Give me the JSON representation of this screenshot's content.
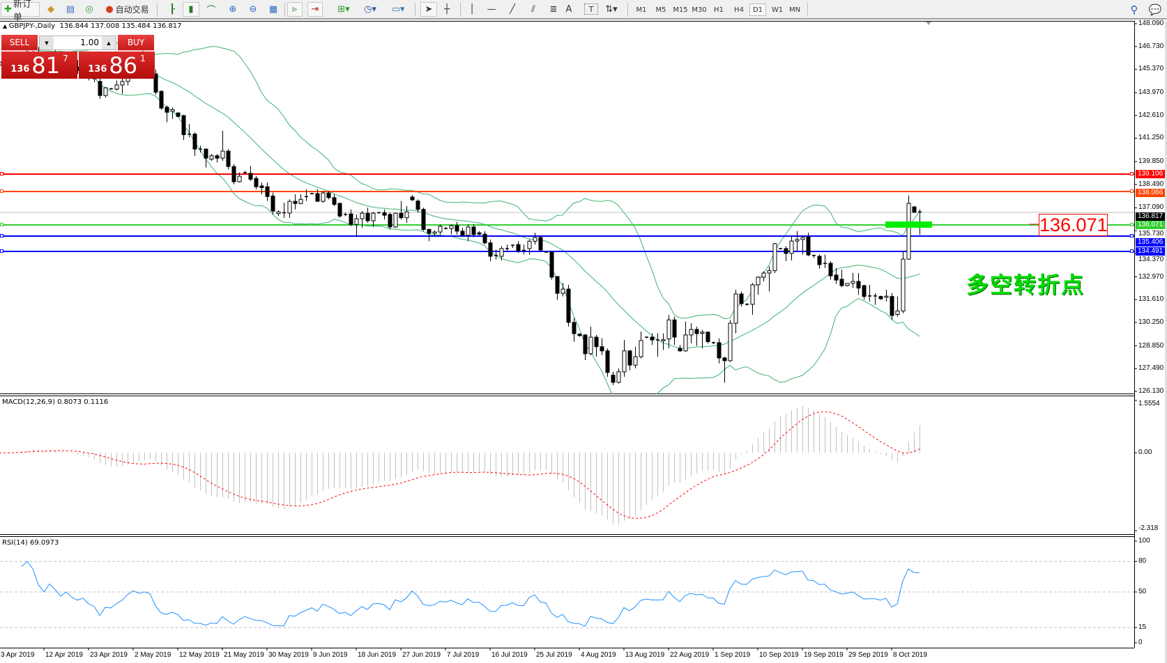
{
  "toolbar": {
    "new_order_label": "新订单",
    "auto_trading_label": "自动交易",
    "timeframes": [
      "M1",
      "M5",
      "M15",
      "M30",
      "H1",
      "H4",
      "D1",
      "W1",
      "MN"
    ],
    "active_timeframe": "D1",
    "drawing_tools": {
      "text_tool": "A",
      "label_tool": "T"
    }
  },
  "chart": {
    "symbol_period": "GBPJPY-,Daily",
    "ohlc": "136.844 137.008 135.484 136.817",
    "macd_label": "MACD(12,26,9) 0.8073 0.1116",
    "rsi_label": "RSI(14) 69.0973"
  },
  "trade_panel": {
    "sell_label": "SELL",
    "buy_label": "BUY",
    "lot": "1.00",
    "sell_price": {
      "prefix": "136",
      "main": "81",
      "sup": "7"
    },
    "buy_price": {
      "prefix": "136",
      "main": "86",
      "sup": "1"
    }
  },
  "annotation": {
    "price_box": "136.071",
    "text": "多空转折点"
  },
  "chart_data": {
    "type": "candlestick",
    "symbol": "GBPJPY-",
    "timeframe": "Daily",
    "ylim": [
      126.13,
      148.09
    ],
    "price_ticks": [
      "148.090",
      "146.730",
      "145.370",
      "143.970",
      "142.610",
      "141.250",
      "139.850",
      "138.490",
      "137.090",
      "135.730",
      "134.370",
      "132.970",
      "131.610",
      "130.250",
      "128.850",
      "127.490",
      "126.130"
    ],
    "date_ticks": [
      "3 Apr 2019",
      "12 Apr 2019",
      "23 Apr 2019",
      "2 May 2019",
      "12 May 2019",
      "21 May 2019",
      "30 May 2019",
      "9 Jun 2019",
      "18 Jun 2019",
      "27 Jun 2019",
      "7 Jul 2019",
      "16 Jul 2019",
      "25 Jul 2019",
      "4 Aug 2019",
      "13 Aug 2019",
      "22 Aug 2019",
      "1 Sep 2019",
      "10 Sep 2019",
      "19 Sep 2019",
      "29 Sep 2019",
      "8 Oct 2019"
    ],
    "bid": {
      "value": "136.817",
      "color": "#c0c0c0"
    },
    "levels": [
      {
        "value": "139.106",
        "color": "#ff0000"
      },
      {
        "value": "138.066",
        "color": "#ff4500"
      },
      {
        "value": "136.071",
        "color": "#32cd32"
      },
      {
        "value": "135.406",
        "color": "#0000ff"
      },
      {
        "value": "134.491",
        "color": "#0000ff"
      }
    ],
    "bollinger": {
      "period": 20,
      "deviation": 2,
      "color": "#3cb371"
    },
    "macd": {
      "fast": 12,
      "slow": 26,
      "signal": 9,
      "ylim": [
        -2.318,
        1.5554
      ],
      "ticks": [
        "1.5554",
        "0.00",
        "-2.318"
      ],
      "hist_color": "#c0c0c0",
      "signal_color": "#ff0000"
    },
    "rsi": {
      "period": 14,
      "ylim": [
        0,
        100
      ],
      "levels": [
        80,
        50,
        15
      ],
      "ticks": [
        "100",
        "80",
        "50",
        "15",
        "0"
      ],
      "color": "#1e90ff"
    },
    "candles": [
      [
        145.6,
        146.0,
        145.3,
        145.8
      ],
      [
        145.8,
        146.1,
        145.5,
        145.7
      ],
      [
        145.7,
        146.2,
        145.5,
        146.0
      ],
      [
        146.0,
        146.4,
        145.7,
        145.9
      ],
      [
        145.9,
        146.3,
        145.6,
        146.2
      ],
      [
        146.2,
        146.6,
        145.9,
        146.4
      ],
      [
        146.4,
        146.8,
        146.1,
        146.3
      ],
      [
        146.3,
        146.7,
        145.9,
        146.0
      ],
      [
        146.0,
        146.3,
        145.6,
        145.8
      ],
      [
        145.8,
        146.2,
        145.5,
        146.1
      ],
      [
        146.1,
        146.5,
        145.8,
        145.9
      ],
      [
        145.9,
        146.2,
        145.4,
        145.6
      ],
      [
        145.6,
        146.0,
        145.3,
        145.8
      ],
      [
        145.8,
        146.1,
        145.4,
        145.5
      ],
      [
        145.5,
        145.9,
        145.1,
        145.3
      ],
      [
        145.3,
        145.7,
        145.0,
        145.4
      ],
      [
        145.4,
        145.7,
        144.7,
        145.0
      ],
      [
        145.0,
        145.3,
        144.6,
        144.8
      ],
      [
        144.64,
        144.9,
        143.6,
        143.8
      ],
      [
        143.8,
        144.3,
        143.68,
        144.26
      ],
      [
        144.2,
        144.25,
        144.15,
        144.18
      ],
      [
        144.18,
        144.7,
        144.1,
        144.43
      ],
      [
        144.43,
        144.9,
        143.9,
        144.64
      ],
      [
        144.64,
        145.2,
        144.4,
        145.0
      ],
      [
        145.0,
        145.5,
        144.8,
        145.3
      ],
      [
        145.3,
        145.6,
        144.9,
        145.1
      ],
      [
        145.1,
        145.4,
        144.8,
        145.2
      ],
      [
        145.2,
        145.5,
        144.9,
        145.09
      ],
      [
        145.09,
        145.35,
        143.85,
        144.0
      ],
      [
        144.05,
        144.1,
        142.95,
        143.05
      ],
      [
        143.1,
        143.2,
        142.2,
        142.8
      ],
      [
        142.85,
        143.1,
        142.4,
        142.95
      ],
      [
        142.76,
        142.8,
        142.5,
        142.55
      ],
      [
        142.6,
        142.65,
        141.14,
        141.46
      ],
      [
        141.48,
        142.1,
        141.3,
        141.5
      ],
      [
        141.5,
        141.6,
        140.2,
        140.6
      ],
      [
        140.6,
        140.8,
        140.4,
        140.6
      ],
      [
        140.6,
        140.65,
        139.5,
        140.06
      ],
      [
        140.0,
        140.3,
        139.9,
        140.2
      ],
      [
        140.2,
        140.3,
        139.8,
        140.06
      ],
      [
        140.06,
        141.7,
        139.9,
        140.48
      ],
      [
        140.48,
        140.6,
        139.4,
        139.56
      ],
      [
        139.56,
        139.7,
        138.5,
        138.65
      ],
      [
        138.65,
        139.2,
        138.6,
        138.98
      ],
      [
        139.15,
        139.3,
        139.1,
        139.2
      ],
      [
        139.15,
        139.6,
        138.7,
        138.8
      ],
      [
        138.85,
        139.0,
        138.2,
        138.35
      ],
      [
        138.4,
        138.6,
        137.9,
        138.3
      ],
      [
        138.35,
        138.6,
        137.5,
        137.77
      ],
      [
        137.8,
        138.0,
        136.7,
        136.9
      ],
      [
        136.75,
        136.95,
        136.6,
        136.85
      ],
      [
        136.8,
        137.4,
        136.5,
        136.8
      ],
      [
        136.78,
        137.6,
        136.5,
        137.48
      ],
      [
        137.48,
        137.9,
        137.0,
        137.35
      ],
      [
        137.35,
        137.9,
        137.3,
        137.6
      ],
      [
        137.7,
        138.2,
        137.5,
        137.76
      ],
      [
        137.94,
        138.0,
        137.9,
        137.94
      ],
      [
        137.94,
        138.2,
        137.5,
        137.48
      ],
      [
        137.48,
        138.1,
        137.4,
        137.98
      ],
      [
        137.98,
        138.1,
        137.6,
        137.7
      ],
      [
        137.7,
        137.9,
        137.2,
        137.3
      ],
      [
        137.36,
        137.4,
        136.5,
        136.6
      ],
      [
        136.65,
        136.8,
        136.6,
        136.7
      ],
      [
        136.73,
        137.0,
        136.0,
        136.1
      ],
      [
        136.1,
        136.7,
        135.36,
        136.44
      ],
      [
        136.44,
        136.9,
        135.9,
        136.77
      ],
      [
        136.77,
        137.1,
        136.2,
        136.32
      ],
      [
        136.32,
        136.85,
        135.95,
        136.77
      ],
      [
        136.8,
        136.85,
        136.75,
        136.8
      ],
      [
        136.8,
        137.0,
        136.4,
        136.65
      ],
      [
        136.7,
        136.8,
        135.8,
        135.95
      ],
      [
        135.95,
        136.8,
        135.9,
        136.77
      ],
      [
        136.77,
        137.5,
        136.4,
        136.5
      ],
      [
        136.5,
        137.2,
        136.2,
        136.85
      ],
      [
        137.74,
        137.85,
        137.5,
        137.57
      ],
      [
        137.5,
        137.6,
        136.8,
        137.0
      ],
      [
        137.0,
        137.1,
        135.7,
        135.8
      ],
      [
        135.8,
        135.85,
        135.1,
        135.57
      ],
      [
        135.57,
        135.75,
        135.4,
        135.65
      ],
      [
        135.65,
        136.1,
        135.5,
        135.99
      ],
      [
        135.86,
        135.95,
        135.8,
        135.86
      ],
      [
        135.86,
        136.1,
        135.5,
        136.03
      ],
      [
        136.03,
        136.25,
        135.5,
        135.7
      ],
      [
        135.7,
        135.9,
        135.4,
        135.45
      ],
      [
        135.45,
        136.1,
        135.1,
        135.95
      ],
      [
        135.95,
        136.1,
        135.35,
        135.5
      ],
      [
        135.6,
        135.7,
        135.45,
        135.52
      ],
      [
        135.52,
        135.7,
        134.9,
        135.0
      ],
      [
        135.0,
        135.2,
        133.9,
        134.2
      ],
      [
        134.25,
        134.6,
        134.0,
        134.2
      ],
      [
        134.2,
        134.8,
        133.95,
        134.66
      ],
      [
        134.66,
        134.9,
        134.5,
        134.66
      ],
      [
        134.8,
        134.9,
        134.7,
        134.86
      ],
      [
        134.9,
        135.1,
        134.4,
        134.53
      ],
      [
        134.55,
        134.9,
        134.3,
        134.5
      ],
      [
        134.66,
        135.2,
        134.3,
        135.1
      ],
      [
        135.1,
        135.6,
        134.9,
        135.32
      ],
      [
        135.32,
        135.4,
        134.5,
        134.57
      ],
      [
        134.45,
        134.5,
        134.4,
        134.45
      ],
      [
        134.45,
        134.5,
        132.8,
        132.95
      ],
      [
        132.99,
        133.0,
        131.6,
        131.99
      ],
      [
        131.99,
        132.6,
        131.8,
        132.24
      ],
      [
        132.24,
        132.5,
        130.0,
        130.25
      ],
      [
        130.25,
        130.5,
        129.1,
        129.58
      ],
      [
        129.55,
        129.6,
        129.4,
        129.46
      ],
      [
        129.5,
        129.55,
        128.0,
        128.38
      ],
      [
        128.38,
        130.0,
        128.3,
        129.37
      ],
      [
        129.37,
        129.5,
        128.2,
        128.8
      ],
      [
        128.8,
        129.3,
        128.3,
        128.55
      ],
      [
        128.55,
        128.7,
        127.0,
        127.26
      ],
      [
        127.1,
        127.3,
        126.5,
        126.67
      ],
      [
        126.67,
        127.5,
        126.6,
        127.3
      ],
      [
        127.3,
        129.2,
        127.0,
        128.55
      ],
      [
        128.55,
        128.6,
        127.4,
        127.7
      ],
      [
        127.7,
        128.8,
        127.5,
        128.2
      ],
      [
        128.2,
        129.7,
        128.1,
        129.17
      ],
      [
        129.37,
        129.4,
        129.3,
        129.37
      ],
      [
        129.37,
        129.6,
        128.9,
        129.2
      ],
      [
        129.2,
        129.6,
        128.2,
        129.2
      ],
      [
        129.15,
        129.6,
        128.6,
        129.22
      ],
      [
        129.26,
        130.7,
        128.7,
        130.4
      ],
      [
        130.4,
        130.6,
        128.9,
        129.37
      ],
      [
        128.7,
        128.9,
        128.5,
        128.55
      ],
      [
        128.55,
        130.3,
        128.5,
        129.5
      ],
      [
        129.5,
        130.2,
        129.0,
        129.83
      ],
      [
        129.83,
        130.0,
        128.85,
        129.58
      ],
      [
        129.6,
        129.8,
        128.7,
        129.67
      ],
      [
        129.67,
        129.7,
        129.0,
        129.1
      ],
      [
        129.04,
        129.1,
        128.95,
        129.04
      ],
      [
        129.04,
        129.3,
        127.8,
        128.13
      ],
      [
        128.13,
        128.2,
        126.65,
        127.96
      ],
      [
        127.96,
        130.4,
        127.9,
        130.2
      ],
      [
        130.2,
        132.2,
        129.6,
        131.95
      ],
      [
        131.95,
        132.1,
        131.2,
        131.37
      ],
      [
        131.33,
        131.4,
        131.25,
        131.33
      ],
      [
        131.33,
        132.6,
        130.7,
        132.5
      ],
      [
        132.5,
        133.0,
        131.9,
        132.95
      ],
      [
        132.95,
        133.3,
        132.7,
        133.2
      ],
      [
        133.2,
        133.6,
        132.1,
        133.34
      ],
      [
        133.34,
        135.0,
        133.2,
        134.95
      ],
      [
        134.66,
        134.7,
        134.6,
        134.66
      ],
      [
        134.66,
        134.8,
        133.9,
        134.37
      ],
      [
        134.37,
        135.4,
        133.95,
        135.11
      ],
      [
        135.11,
        135.7,
        134.5,
        135.2
      ],
      [
        135.2,
        135.45,
        134.3,
        135.32
      ],
      [
        135.36,
        135.6,
        134.2,
        134.28
      ],
      [
        134.25,
        134.3,
        134.1,
        134.2
      ],
      [
        134.2,
        134.3,
        133.45,
        133.7
      ],
      [
        133.78,
        134.3,
        133.5,
        133.78
      ],
      [
        133.78,
        133.9,
        132.8,
        133.03
      ],
      [
        133.08,
        133.5,
        132.55,
        132.78
      ],
      [
        132.83,
        133.4,
        132.35,
        132.45
      ],
      [
        132.45,
        132.6,
        132.4,
        132.58
      ],
      [
        132.58,
        133.2,
        132.3,
        132.7
      ],
      [
        132.7,
        133.2,
        131.9,
        132.3
      ],
      [
        132.45,
        132.5,
        131.6,
        131.8
      ],
      [
        131.83,
        132.5,
        131.5,
        131.83
      ],
      [
        131.83,
        132.0,
        131.3,
        131.83
      ],
      [
        131.8,
        131.85,
        131.6,
        131.66
      ],
      [
        131.75,
        132.2,
        131.5,
        131.82
      ],
      [
        131.8,
        132.0,
        130.4,
        130.66
      ],
      [
        130.72,
        131.8,
        130.6,
        130.93
      ],
      [
        130.93,
        134.5,
        130.8,
        134.03
      ],
      [
        134.03,
        137.83,
        134.0,
        137.36
      ],
      [
        137.15,
        137.2,
        136.8,
        136.82
      ],
      [
        136.844,
        137.008,
        135.484,
        136.817
      ]
    ]
  }
}
